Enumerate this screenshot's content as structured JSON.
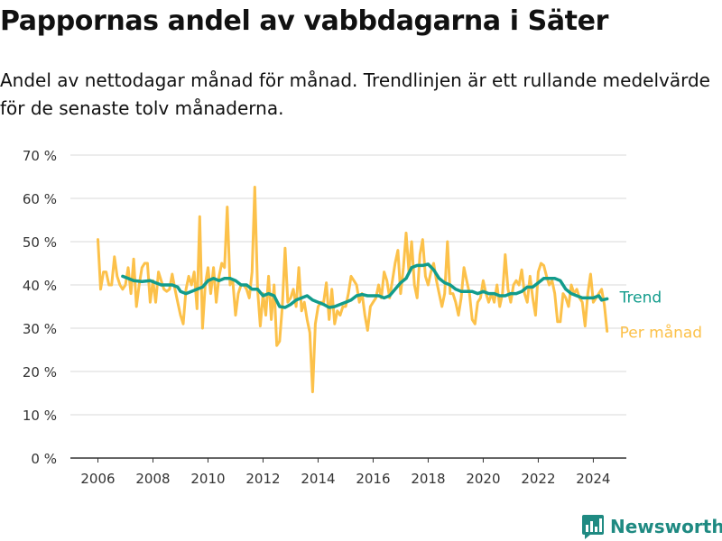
{
  "title": "Pappornas andel av vabbdagarna i Säter",
  "subtitle": "Andel av nettodagar månad för månad. Trendlinjen är ett rullande medelvärde för de senaste tolv månaderna.",
  "brand": {
    "name": "Newsworthy",
    "icon": "bar-chart-logo-icon",
    "color": "#1f8a82"
  },
  "chart_data": {
    "type": "line",
    "xlim": [
      2005.0,
      2025.2
    ],
    "ylim": [
      0,
      70
    ],
    "x_ticks": [
      2006,
      2008,
      2010,
      2012,
      2014,
      2016,
      2018,
      2020,
      2022,
      2024
    ],
    "y_ticks": [
      0,
      10,
      20,
      30,
      40,
      50,
      60,
      70
    ],
    "y_tick_labels": [
      "0 %",
      "10 %",
      "20 %",
      "30 %",
      "40 %",
      "50 %",
      "60 %",
      "70 %"
    ],
    "x_tick_labels": [
      "2006",
      "2008",
      "2010",
      "2012",
      "2014",
      "2016",
      "2018",
      "2020",
      "2022",
      "2024"
    ],
    "grid": true,
    "legend": "line-end labels",
    "series": [
      {
        "name": "Per månad",
        "color": "#fcc14a",
        "points": [
          [
            2006.0,
            50.5
          ],
          [
            2006.1,
            39
          ],
          [
            2006.2,
            43
          ],
          [
            2006.3,
            43
          ],
          [
            2006.4,
            40
          ],
          [
            2006.5,
            40
          ],
          [
            2006.6,
            46.5
          ],
          [
            2006.7,
            42
          ],
          [
            2006.8,
            40
          ],
          [
            2006.9,
            39
          ],
          [
            2007.0,
            40
          ],
          [
            2007.1,
            44
          ],
          [
            2007.2,
            38
          ],
          [
            2007.3,
            46
          ],
          [
            2007.4,
            35
          ],
          [
            2007.5,
            40
          ],
          [
            2007.6,
            44
          ],
          [
            2007.7,
            45
          ],
          [
            2007.8,
            45
          ],
          [
            2007.9,
            36
          ],
          [
            2008.0,
            41
          ],
          [
            2008.1,
            36
          ],
          [
            2008.2,
            43
          ],
          [
            2008.3,
            41
          ],
          [
            2008.4,
            39
          ],
          [
            2008.5,
            38.5
          ],
          [
            2008.6,
            39
          ],
          [
            2008.7,
            42.5
          ],
          [
            2008.8,
            39
          ],
          [
            2008.9,
            36
          ],
          [
            2009.0,
            33
          ],
          [
            2009.1,
            31
          ],
          [
            2009.2,
            39
          ],
          [
            2009.3,
            42
          ],
          [
            2009.4,
            40
          ],
          [
            2009.5,
            43
          ],
          [
            2009.6,
            34.5
          ],
          [
            2009.7,
            55.8
          ],
          [
            2009.8,
            30
          ],
          [
            2009.9,
            40
          ],
          [
            2010.0,
            44
          ],
          [
            2010.1,
            38
          ],
          [
            2010.2,
            44
          ],
          [
            2010.3,
            36
          ],
          [
            2010.4,
            42
          ],
          [
            2010.5,
            45
          ],
          [
            2010.6,
            44
          ],
          [
            2010.7,
            58
          ],
          [
            2010.8,
            40
          ],
          [
            2010.9,
            41
          ],
          [
            2011.0,
            33
          ],
          [
            2011.1,
            38
          ],
          [
            2011.2,
            40
          ],
          [
            2011.3,
            40
          ],
          [
            2011.4,
            39
          ],
          [
            2011.5,
            37
          ],
          [
            2011.6,
            43
          ],
          [
            2011.7,
            62.6
          ],
          [
            2011.8,
            39
          ],
          [
            2011.9,
            30.5
          ],
          [
            2012.0,
            38
          ],
          [
            2012.1,
            33
          ],
          [
            2012.2,
            42
          ],
          [
            2012.3,
            32
          ],
          [
            2012.4,
            40
          ],
          [
            2012.5,
            26
          ],
          [
            2012.6,
            27
          ],
          [
            2012.7,
            35
          ],
          [
            2012.8,
            48.5
          ],
          [
            2012.9,
            36
          ],
          [
            2013.0,
            37
          ],
          [
            2013.1,
            39
          ],
          [
            2013.2,
            35
          ],
          [
            2013.3,
            44
          ],
          [
            2013.4,
            34
          ],
          [
            2013.5,
            36
          ],
          [
            2013.6,
            32
          ],
          [
            2013.7,
            29
          ],
          [
            2013.8,
            15.3
          ],
          [
            2013.9,
            31
          ],
          [
            2014.0,
            35
          ],
          [
            2014.1,
            36
          ],
          [
            2014.2,
            36
          ],
          [
            2014.3,
            40.5
          ],
          [
            2014.4,
            32
          ],
          [
            2014.5,
            39
          ],
          [
            2014.6,
            31
          ],
          [
            2014.7,
            34
          ],
          [
            2014.8,
            33
          ],
          [
            2014.9,
            35
          ],
          [
            2015.0,
            35
          ],
          [
            2015.1,
            38
          ],
          [
            2015.2,
            42
          ],
          [
            2015.3,
            41
          ],
          [
            2015.4,
            40
          ],
          [
            2015.5,
            36
          ],
          [
            2015.6,
            38
          ],
          [
            2015.7,
            33
          ],
          [
            2015.8,
            29.5
          ],
          [
            2015.9,
            35
          ],
          [
            2016.0,
            36
          ],
          [
            2016.1,
            37
          ],
          [
            2016.2,
            40
          ],
          [
            2016.3,
            37
          ],
          [
            2016.4,
            43
          ],
          [
            2016.5,
            41
          ],
          [
            2016.6,
            37
          ],
          [
            2016.7,
            41
          ],
          [
            2016.8,
            45
          ],
          [
            2016.9,
            48
          ],
          [
            2017.0,
            38
          ],
          [
            2017.1,
            44
          ],
          [
            2017.2,
            52
          ],
          [
            2017.3,
            43
          ],
          [
            2017.4,
            50
          ],
          [
            2017.5,
            40
          ],
          [
            2017.6,
            37
          ],
          [
            2017.7,
            47
          ],
          [
            2017.8,
            50.5
          ],
          [
            2017.9,
            42
          ],
          [
            2018.0,
            40
          ],
          [
            2018.1,
            43
          ],
          [
            2018.2,
            45
          ],
          [
            2018.3,
            41
          ],
          [
            2018.4,
            38
          ],
          [
            2018.5,
            35
          ],
          [
            2018.6,
            38
          ],
          [
            2018.7,
            50
          ],
          [
            2018.8,
            38
          ],
          [
            2018.9,
            38
          ],
          [
            2019.0,
            36
          ],
          [
            2019.1,
            33
          ],
          [
            2019.2,
            37
          ],
          [
            2019.3,
            44
          ],
          [
            2019.4,
            41
          ],
          [
            2019.5,
            38
          ],
          [
            2019.6,
            32
          ],
          [
            2019.7,
            31
          ],
          [
            2019.8,
            36
          ],
          [
            2019.9,
            37
          ],
          [
            2020.0,
            41
          ],
          [
            2020.1,
            38
          ],
          [
            2020.2,
            36
          ],
          [
            2020.3,
            38
          ],
          [
            2020.4,
            36
          ],
          [
            2020.5,
            40
          ],
          [
            2020.6,
            35
          ],
          [
            2020.7,
            38
          ],
          [
            2020.8,
            47
          ],
          [
            2020.9,
            39
          ],
          [
            2021.0,
            36
          ],
          [
            2021.1,
            40
          ],
          [
            2021.2,
            41
          ],
          [
            2021.3,
            40
          ],
          [
            2021.4,
            43.5
          ],
          [
            2021.5,
            38
          ],
          [
            2021.6,
            36
          ],
          [
            2021.7,
            42
          ],
          [
            2021.8,
            37
          ],
          [
            2021.9,
            33
          ],
          [
            2022.0,
            43
          ],
          [
            2022.1,
            45
          ],
          [
            2022.2,
            44.5
          ],
          [
            2022.3,
            42
          ],
          [
            2022.4,
            40
          ],
          [
            2022.5,
            41
          ],
          [
            2022.6,
            38
          ],
          [
            2022.7,
            31.5
          ],
          [
            2022.8,
            31.5
          ],
          [
            2022.9,
            38
          ],
          [
            2023.0,
            37
          ],
          [
            2023.1,
            35
          ],
          [
            2023.2,
            40
          ],
          [
            2023.3,
            38
          ],
          [
            2023.4,
            39
          ],
          [
            2023.5,
            37
          ],
          [
            2023.6,
            36
          ],
          [
            2023.7,
            30.5
          ],
          [
            2023.8,
            38
          ],
          [
            2023.9,
            42.5
          ],
          [
            2024.0,
            36
          ],
          [
            2024.1,
            37
          ],
          [
            2024.2,
            38
          ],
          [
            2024.3,
            39
          ],
          [
            2024.4,
            35.5
          ],
          [
            2024.5,
            29.3
          ]
        ]
      },
      {
        "name": "Trend",
        "color": "#129c8c",
        "points": [
          [
            2006.9,
            42
          ],
          [
            2007.1,
            41.5
          ],
          [
            2007.3,
            41
          ],
          [
            2007.6,
            40.8
          ],
          [
            2007.9,
            41
          ],
          [
            2008.1,
            40.5
          ],
          [
            2008.3,
            40
          ],
          [
            2008.5,
            40
          ],
          [
            2008.7,
            40
          ],
          [
            2008.9,
            39.5
          ],
          [
            2009.0,
            38.5
          ],
          [
            2009.2,
            38
          ],
          [
            2009.4,
            38.5
          ],
          [
            2009.6,
            39
          ],
          [
            2009.8,
            39.5
          ],
          [
            2010.0,
            41
          ],
          [
            2010.2,
            41.5
          ],
          [
            2010.4,
            41
          ],
          [
            2010.6,
            41.5
          ],
          [
            2010.8,
            41.5
          ],
          [
            2011.0,
            41
          ],
          [
            2011.2,
            40
          ],
          [
            2011.4,
            40
          ],
          [
            2011.6,
            39
          ],
          [
            2011.8,
            39
          ],
          [
            2012.0,
            37.5
          ],
          [
            2012.2,
            38
          ],
          [
            2012.4,
            37.5
          ],
          [
            2012.6,
            35
          ],
          [
            2012.8,
            34.8
          ],
          [
            2013.0,
            35.5
          ],
          [
            2013.2,
            36.5
          ],
          [
            2013.4,
            37
          ],
          [
            2013.6,
            37.5
          ],
          [
            2013.8,
            36.5
          ],
          [
            2014.0,
            36
          ],
          [
            2014.2,
            35.5
          ],
          [
            2014.4,
            34.8
          ],
          [
            2014.6,
            35
          ],
          [
            2014.8,
            35.5
          ],
          [
            2015.0,
            36
          ],
          [
            2015.2,
            36.5
          ],
          [
            2015.4,
            37.5
          ],
          [
            2015.6,
            37.8
          ],
          [
            2015.8,
            37.5
          ],
          [
            2016.0,
            37.5
          ],
          [
            2016.2,
            37.5
          ],
          [
            2016.4,
            37
          ],
          [
            2016.6,
            37.5
          ],
          [
            2016.8,
            39
          ],
          [
            2017.0,
            40.5
          ],
          [
            2017.2,
            41.5
          ],
          [
            2017.4,
            44
          ],
          [
            2017.6,
            44.5
          ],
          [
            2017.8,
            44.5
          ],
          [
            2018.0,
            44.8
          ],
          [
            2018.2,
            43.5
          ],
          [
            2018.4,
            41.5
          ],
          [
            2018.6,
            40.5
          ],
          [
            2018.8,
            40
          ],
          [
            2019.0,
            39
          ],
          [
            2019.2,
            38.5
          ],
          [
            2019.4,
            38.5
          ],
          [
            2019.6,
            38.5
          ],
          [
            2019.8,
            38
          ],
          [
            2020.0,
            38.5
          ],
          [
            2020.2,
            38
          ],
          [
            2020.4,
            38
          ],
          [
            2020.6,
            37.5
          ],
          [
            2020.8,
            37.5
          ],
          [
            2021.0,
            38
          ],
          [
            2021.2,
            38
          ],
          [
            2021.4,
            38.5
          ],
          [
            2021.6,
            39.5
          ],
          [
            2021.8,
            39.5
          ],
          [
            2022.0,
            40.5
          ],
          [
            2022.2,
            41.5
          ],
          [
            2022.4,
            41.5
          ],
          [
            2022.6,
            41.5
          ],
          [
            2022.8,
            41
          ],
          [
            2023.0,
            39
          ],
          [
            2023.2,
            38
          ],
          [
            2023.4,
            37.5
          ],
          [
            2023.6,
            37
          ],
          [
            2023.8,
            37
          ],
          [
            2024.0,
            37
          ],
          [
            2024.2,
            37.5
          ],
          [
            2024.3,
            36.5
          ],
          [
            2024.5,
            36.8
          ]
        ]
      }
    ]
  }
}
